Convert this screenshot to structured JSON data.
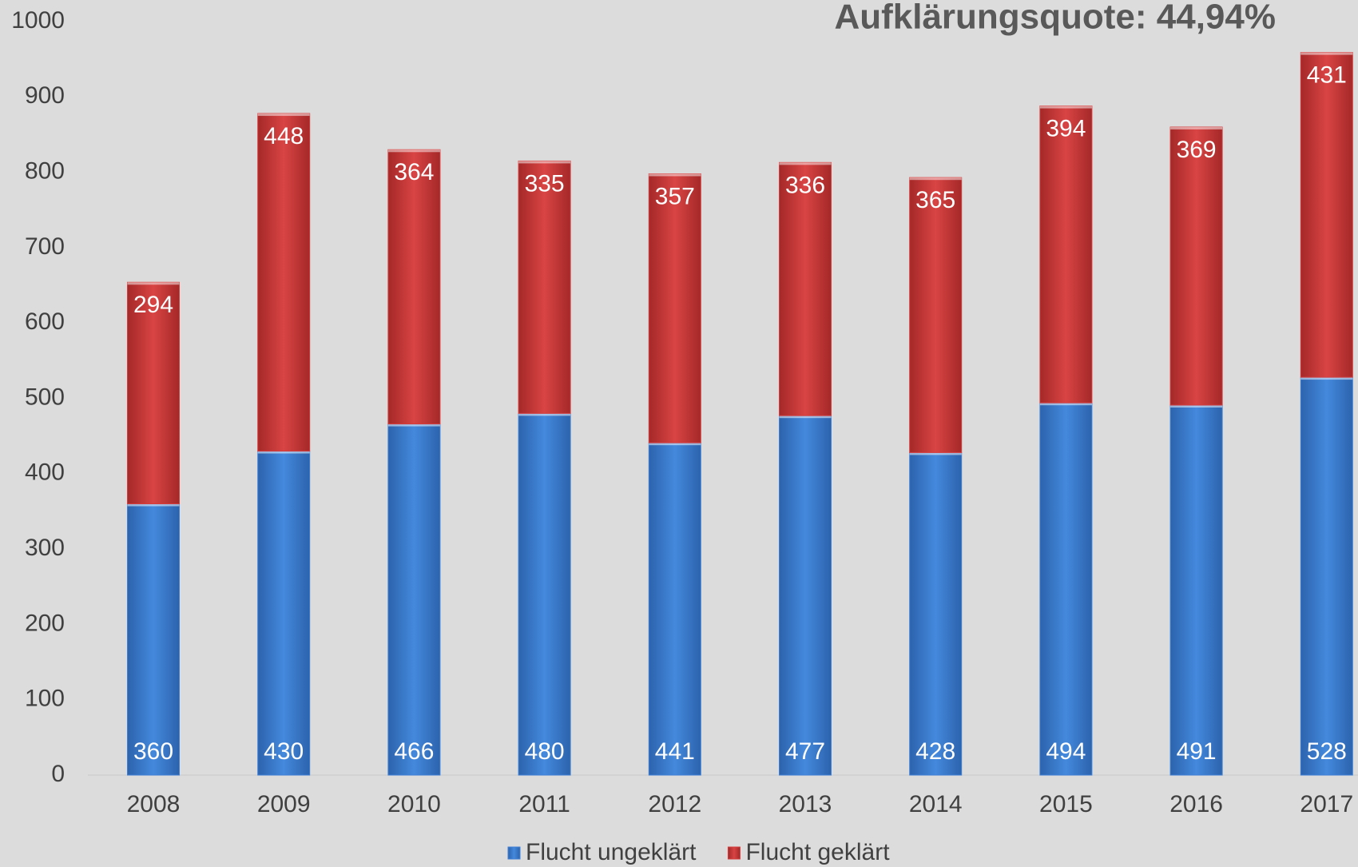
{
  "chart_data": {
    "type": "stacked_bar",
    "title": "Aufklärungsquote: 44,94%",
    "categories": [
      "2008",
      "2009",
      "2010",
      "2011",
      "2012",
      "2013",
      "2014",
      "2015",
      "2016",
      "2017"
    ],
    "series": [
      {
        "name": "Flucht ungeklärt",
        "color": "#3f80d6",
        "values": [
          360,
          430,
          466,
          480,
          441,
          477,
          428,
          494,
          491,
          528
        ]
      },
      {
        "name": "Flucht geklärt",
        "color": "#d43d3d",
        "values": [
          294,
          448,
          364,
          335,
          357,
          336,
          365,
          394,
          369,
          431
        ]
      }
    ],
    "ylim": [
      0,
      1000
    ],
    "yticks": [
      0,
      100,
      200,
      300,
      400,
      500,
      600,
      700,
      800,
      900,
      1000
    ],
    "legend": "bottom"
  }
}
